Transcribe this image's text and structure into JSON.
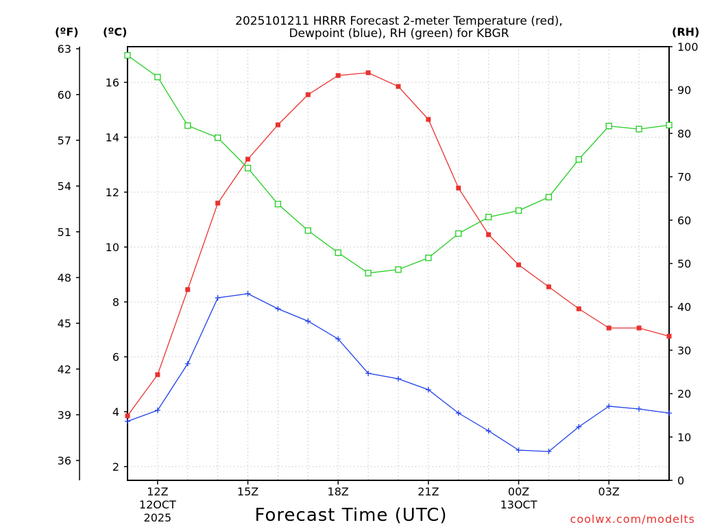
{
  "chart_data": {
    "type": "line",
    "title_line1": "2025101211 HRRR Forecast 2-meter Temperature (red),",
    "title_line2": "Dewpoint (blue), RH (green) for KBGR",
    "xlabel": "Forecast Time (UTC)",
    "credit": "coolwx.com/modelts",
    "units": {
      "fahrenheit": "(ºF)",
      "celsius": "(ºC)",
      "rh": "(RH)"
    },
    "x_hours": [
      11,
      12,
      13,
      14,
      15,
      16,
      17,
      18,
      19,
      20,
      21,
      22,
      23,
      24,
      25,
      26,
      27,
      28,
      29
    ],
    "x_ticks": [
      {
        "hour": 12,
        "label": "12Z",
        "date1": "12OCT",
        "date2": "2025"
      },
      {
        "hour": 15,
        "label": "15Z"
      },
      {
        "hour": 18,
        "label": "18Z"
      },
      {
        "hour": 21,
        "label": "21Z"
      },
      {
        "hour": 24,
        "label": "00Z",
        "date1": "13OCT"
      },
      {
        "hour": 27,
        "label": "03Z"
      }
    ],
    "celsius_ticks": [
      2,
      4,
      6,
      8,
      10,
      12,
      14,
      16
    ],
    "celsius_range": [
      1.5,
      17.3
    ],
    "fahrenheit_ticks": [
      36,
      39,
      42,
      45,
      48,
      51,
      54,
      57,
      60,
      63
    ],
    "rh_ticks": [
      0,
      10,
      20,
      30,
      40,
      50,
      60,
      70,
      80,
      90,
      100
    ],
    "rh_range": [
      0,
      100
    ],
    "series": [
      {
        "name": "Temperature",
        "unit": "C",
        "color": "#e8322f",
        "marker": "filled-square",
        "values": [
          3.85,
          5.35,
          8.45,
          11.6,
          13.2,
          14.45,
          15.55,
          16.25,
          16.35,
          15.85,
          14.65,
          12.15,
          10.45,
          9.35,
          8.55,
          7.75,
          7.05,
          7.05,
          6.75
        ]
      },
      {
        "name": "Dewpoint",
        "unit": "C",
        "color": "#1f3fe8",
        "marker": "plus",
        "values": [
          3.65,
          4.05,
          5.75,
          8.15,
          8.3,
          7.75,
          7.3,
          6.65,
          5.4,
          5.2,
          4.8,
          3.95,
          3.3,
          2.6,
          2.55,
          3.45,
          4.2,
          4.1,
          3.95
        ]
      },
      {
        "name": "RH",
        "unit": "%",
        "color": "#22cc22",
        "marker": "open-square",
        "values": [
          98,
          93,
          81.8,
          79,
          72,
          63.7,
          57.6,
          52.5,
          47.8,
          48.6,
          51.3,
          56.9,
          60.7,
          62.2,
          65.3,
          74,
          81.7,
          81,
          81.9
        ]
      }
    ]
  }
}
